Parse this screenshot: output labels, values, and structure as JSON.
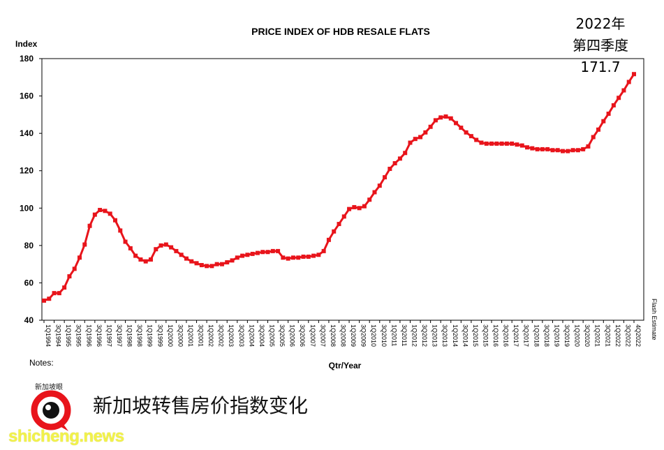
{
  "chart_data": {
    "type": "line",
    "title": "PRICE INDEX OF HDB RESALE FLATS",
    "ylabel": "Index",
    "xlabel": "Qtr/Year",
    "notes_label": "Notes:",
    "flash_label": "Flash Estimate",
    "ylim": [
      40,
      180
    ],
    "yticks": [
      40,
      60,
      80,
      100,
      120,
      140,
      160,
      180
    ],
    "xtick_labels": [
      "1Q1994",
      "3Q1994",
      "1Q1995",
      "3Q1995",
      "1Q1996",
      "3Q1996",
      "1Q1997",
      "3Q1997",
      "1Q1998",
      "3Q1998",
      "1Q1999",
      "3Q1999",
      "1Q2000",
      "3Q2000",
      "1Q2001",
      "3Q2001",
      "1Q2002",
      "3Q2002",
      "1Q2003",
      "3Q2003",
      "1Q2004",
      "3Q2004",
      "1Q2005",
      "3Q2005",
      "1Q2006",
      "3Q2006",
      "1Q2007",
      "3Q2007",
      "1Q2008",
      "3Q2008",
      "1Q2009",
      "3Q2009",
      "1Q2010",
      "3Q2010",
      "1Q2011",
      "3Q2011",
      "1Q2012",
      "3Q2012",
      "1Q2013",
      "3Q2013",
      "1Q2014",
      "3Q2014",
      "1Q2015",
      "3Q2015",
      "1Q2016",
      "3Q2016",
      "1Q2017",
      "3Q2017",
      "1Q2018",
      "3Q2018",
      "1Q2019",
      "3Q2019",
      "1Q2020",
      "3Q2020",
      "1Q2021",
      "3Q2021",
      "1Q2022",
      "3Q2022",
      "4Q2022"
    ],
    "grid": false,
    "line_color": "#e8141b",
    "series": [
      {
        "values": [
          50.5,
          51.5,
          54.5,
          54.5,
          57.5,
          63.5,
          67.5,
          73.5,
          80.5,
          90.5,
          96.5,
          99.0,
          98.5,
          97.0,
          93.5,
          88.0,
          82.0,
          78.5,
          74.5,
          72.5,
          71.5,
          72.5,
          78.0,
          80.0,
          80.5,
          79.0,
          77.0,
          75.0,
          73.0,
          71.5,
          70.5,
          69.5,
          69.0,
          69.0,
          70.0,
          70.0,
          71.0,
          72.0,
          73.5,
          74.5,
          75.0,
          75.5,
          76.0,
          76.5,
          76.5,
          77.0,
          77.0,
          73.5,
          73.0,
          73.5,
          73.5,
          74.0,
          74.0,
          74.5,
          75.0,
          77.0,
          83.0,
          87.5,
          91.5,
          95.5,
          99.5,
          100.5,
          100.0,
          101.0,
          104.5,
          108.5,
          112.0,
          116.5,
          121.0,
          124.0,
          126.5,
          129.5,
          135.0,
          137.0,
          138.0,
          140.5,
          143.5,
          147.0,
          148.5,
          149.0,
          148.0,
          145.5,
          143.0,
          140.5,
          138.5,
          136.5,
          135.0,
          134.5,
          134.5,
          134.5,
          134.5,
          134.5,
          134.5,
          134.0,
          133.5,
          132.5,
          132.0,
          131.5,
          131.5,
          131.5,
          131.0,
          131.0,
          130.5,
          130.5,
          131.0,
          131.0,
          131.5,
          133.0,
          138.0,
          142.0,
          146.5,
          150.5,
          155.0,
          159.0,
          163.0,
          167.5,
          171.7
        ]
      }
    ]
  },
  "annotation": {
    "year": "2022年",
    "quarter": "第四季度",
    "value": "171.7"
  },
  "caption": "新加坡转售房价指数变化",
  "brand": {
    "logo_label": "新加坡眼",
    "site": "shicheng.news",
    "logo_color": "#e8141b"
  }
}
